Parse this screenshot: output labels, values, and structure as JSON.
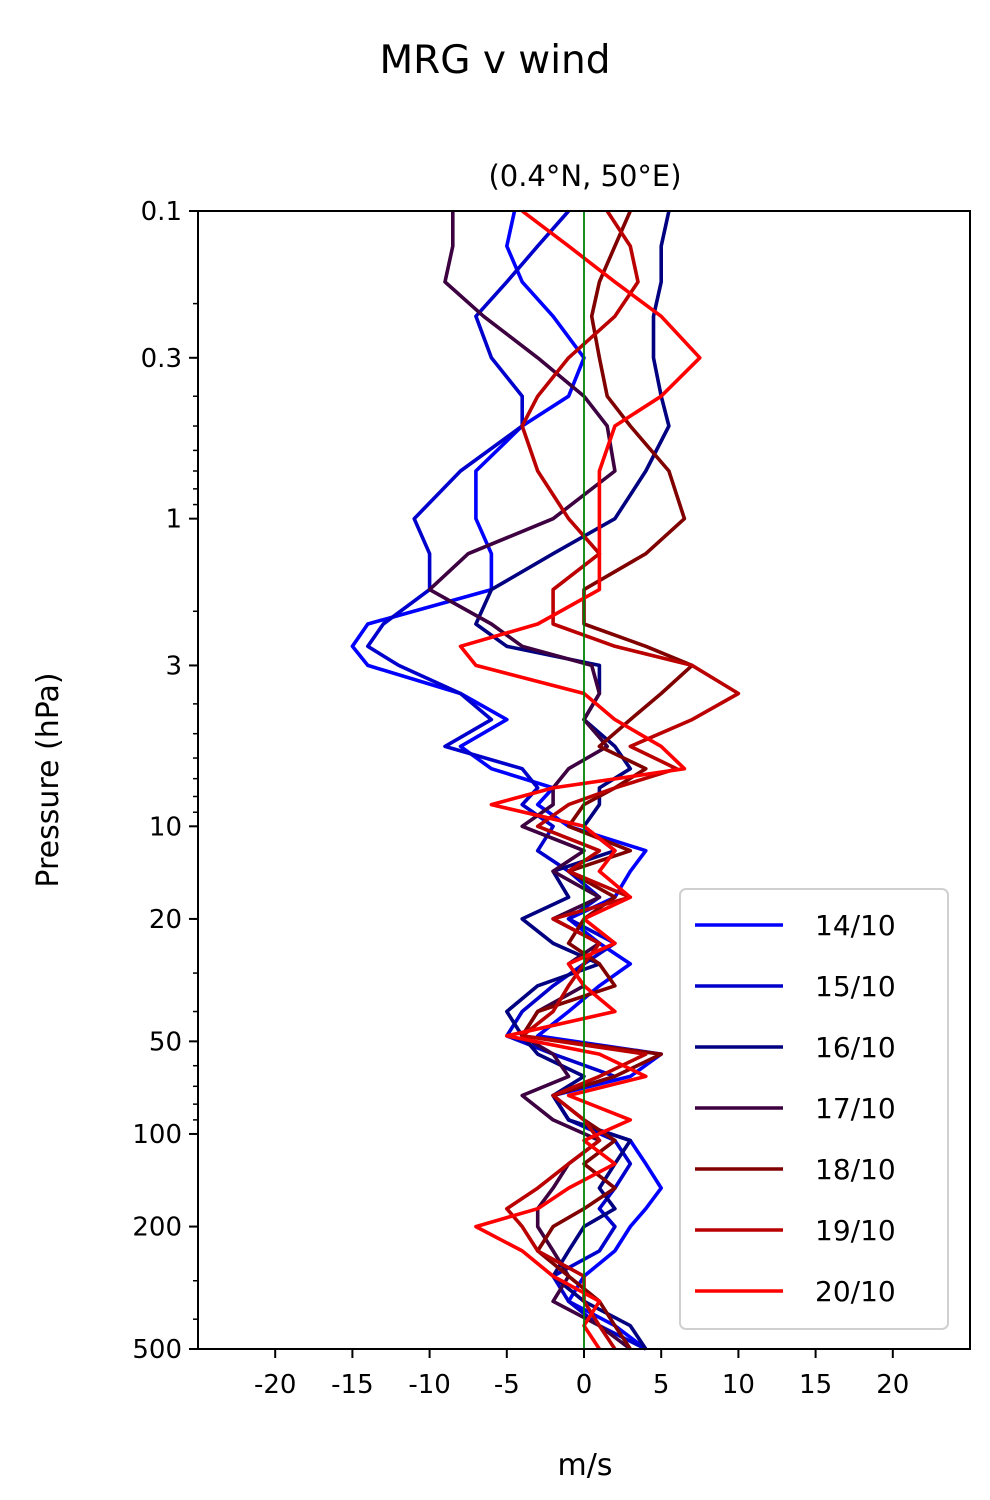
{
  "chart_data": {
    "type": "line",
    "title": "MRG v wind",
    "subtitle": "(0.4°N, 50°E)",
    "xlabel": "m/s",
    "ylabel": "Pressure (hPa)",
    "xlim": [
      -25,
      25
    ],
    "ylim": [
      500,
      0.1
    ],
    "y_scale": "log",
    "y_inverted": true,
    "grid": false,
    "legend_position": "lower-right",
    "x_ticks": [
      -20,
      -15,
      -10,
      -5,
      0,
      5,
      10,
      15,
      20
    ],
    "x_tick_labels": [
      "-20",
      "-15",
      "-10",
      "-5",
      "0",
      "5",
      "10",
      "15",
      "20"
    ],
    "y_ticks": [
      0.1,
      0.3,
      1,
      3,
      10,
      20,
      50,
      100,
      200,
      500
    ],
    "y_tick_labels": [
      "0.1",
      "0.3",
      "1",
      "3",
      "10",
      "20",
      "50",
      "100",
      "200",
      "500"
    ],
    "zero_line_color": "#008000",
    "levels_hPa": [
      0.1,
      0.13,
      0.17,
      0.22,
      0.3,
      0.4,
      0.5,
      0.7,
      1.0,
      1.3,
      1.7,
      2.2,
      2.6,
      3.0,
      3.7,
      4.5,
      5.5,
      6.5,
      7.5,
      8.5,
      10,
      12,
      14,
      17,
      20,
      24,
      28,
      33,
      40,
      48,
      55,
      65,
      75,
      90,
      105,
      125,
      150,
      175,
      200,
      240,
      290,
      350,
      420,
      500
    ],
    "series": [
      {
        "name": "14/10",
        "color": "#0000ff",
        "values": [
          -4.5,
          -5,
          -4,
          -2,
          0,
          -1,
          -4,
          -7,
          -7,
          -6,
          -6,
          -14,
          -15,
          -14,
          -8,
          -5,
          -8,
          -6,
          -2,
          -3,
          -1,
          4,
          3,
          2,
          -1,
          1,
          3,
          1,
          -1,
          -3,
          5,
          3,
          -2,
          -1,
          3,
          4,
          5,
          4,
          3,
          2,
          0,
          -1,
          2,
          4
        ]
      },
      {
        "name": "15/10",
        "color": "#0000cc",
        "values": [
          -1,
          -3,
          -5,
          -7,
          -6,
          -4,
          -4,
          -8,
          -11,
          -10,
          -10,
          -13,
          -14,
          -12,
          -8,
          -6,
          -9,
          -4,
          -3,
          -4,
          -2,
          -3,
          -1,
          1,
          -1,
          2,
          0,
          -2,
          -4,
          -5,
          -2,
          2,
          -2,
          -1,
          2,
          3,
          2,
          1,
          2,
          1,
          -2,
          -1,
          1,
          4
        ]
      },
      {
        "name": "16/10",
        "color": "#000080",
        "values": [
          5.5,
          5,
          5,
          4.5,
          4.5,
          5,
          5.5,
          4,
          2,
          -2,
          -6,
          -7,
          -5,
          1,
          1,
          0,
          2,
          3,
          1,
          1,
          0,
          2,
          -2,
          -1,
          -4,
          -2,
          1,
          -3,
          -5,
          -4,
          -3,
          0,
          -2,
          -1,
          3,
          2,
          1,
          2,
          0,
          -1,
          -2,
          0,
          3,
          4
        ]
      },
      {
        "name": "17/10",
        "color": "#3d0040",
        "values": [
          -8.5,
          -8.5,
          -9,
          -6.5,
          -3,
          0,
          1.5,
          2,
          -2,
          -7.5,
          -10,
          -6,
          -4,
          0.5,
          1,
          0,
          1.5,
          -1,
          -2,
          -2,
          -4,
          0,
          -2,
          1,
          -2,
          1,
          -1,
          0,
          -3,
          -4,
          -2,
          -1,
          -4,
          -2,
          1,
          -1,
          -2,
          -3,
          -3,
          -2,
          -1,
          -2,
          1,
          3
        ]
      },
      {
        "name": "18/10",
        "color": "#800000",
        "values": [
          3,
          2,
          1,
          0.5,
          1,
          1.5,
          3,
          5.5,
          6.5,
          4,
          0,
          0,
          4,
          7,
          5,
          3,
          1,
          4,
          2,
          0,
          -1,
          3,
          -1,
          2,
          0,
          -1,
          1,
          2,
          -3,
          -4,
          5,
          2,
          -2,
          0,
          2,
          0,
          2,
          0,
          -2,
          -3,
          -1,
          1,
          2,
          3
        ]
      },
      {
        "name": "19/10",
        "color": "#bb0000",
        "values": [
          1.5,
          3,
          3.5,
          2,
          -1,
          -3,
          -4,
          -3,
          -1,
          1,
          -2,
          -2,
          2,
          7,
          10,
          7,
          3,
          6,
          2,
          -1,
          -3,
          1,
          -1,
          3,
          -2,
          1,
          0,
          -1,
          -2,
          -4,
          4,
          1,
          -2,
          0,
          1,
          -1,
          -3,
          -5,
          -4,
          -3,
          0,
          0,
          1,
          2
        ]
      },
      {
        "name": "20/10",
        "color": "#ff0000",
        "values": [
          -4,
          -1,
          2,
          5,
          7.5,
          5,
          2,
          1,
          1,
          1,
          1,
          -3,
          -8,
          -7,
          0,
          2,
          5,
          6.5,
          -2,
          -6,
          0,
          2,
          1,
          3,
          0,
          2,
          -1,
          0,
          2,
          -5,
          1,
          4,
          -1,
          3,
          0,
          2,
          -1,
          -3,
          -7,
          -4,
          -2,
          1,
          0,
          1
        ]
      }
    ]
  }
}
